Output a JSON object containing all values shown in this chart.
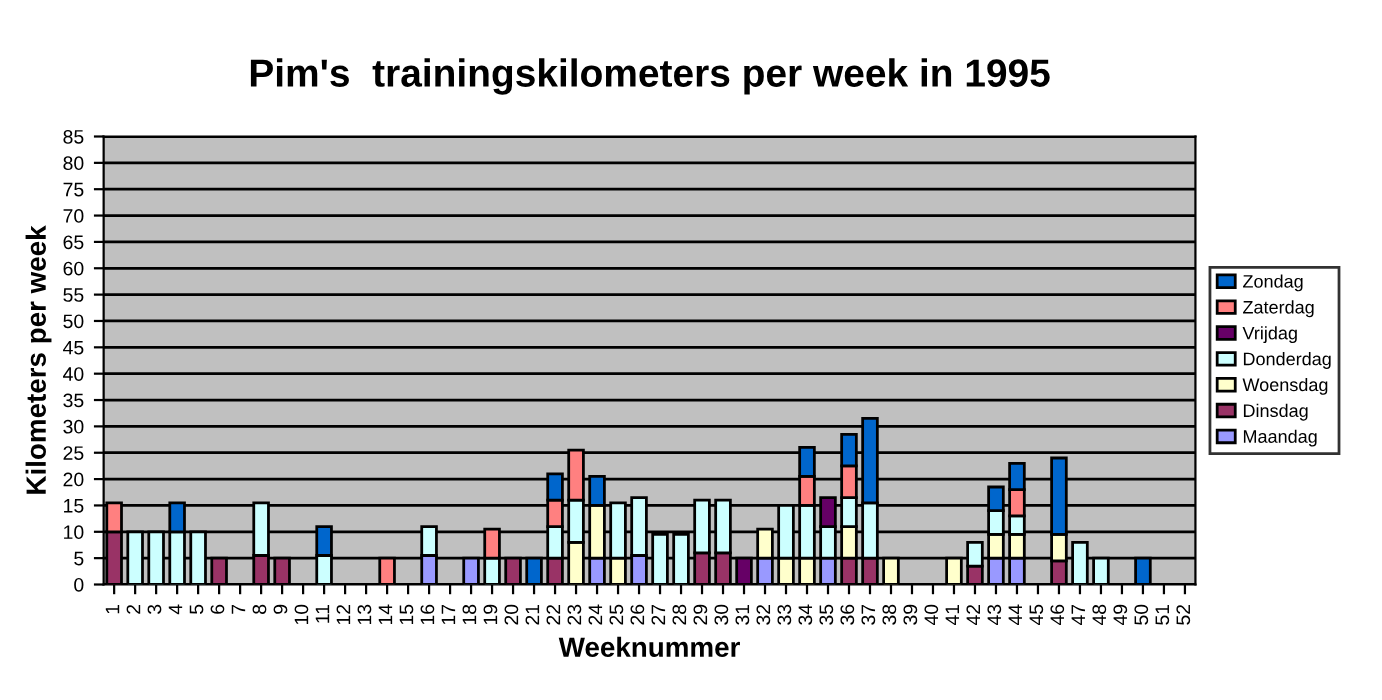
{
  "chart_data": {
    "type": "bar",
    "stacked": true,
    "title": "Pim's  trainingskilometers per week in 1995",
    "xlabel": "Weeknummer",
    "ylabel": "Kilometers per week",
    "categories": [
      "1",
      "2",
      "3",
      "4",
      "5",
      "6",
      "7",
      "8",
      "9",
      "10",
      "11",
      "12",
      "13",
      "14",
      "15",
      "16",
      "17",
      "18",
      "19",
      "20",
      "21",
      "22",
      "23",
      "24",
      "25",
      "26",
      "27",
      "28",
      "29",
      "30",
      "31",
      "32",
      "33",
      "34",
      "35",
      "36",
      "37",
      "38",
      "39",
      "40",
      "41",
      "42",
      "43",
      "44",
      "45",
      "46",
      "47",
      "48",
      "49",
      "50",
      "51",
      "52"
    ],
    "series": [
      {
        "name": "Maandag",
        "color": "#9999ff",
        "values": [
          null,
          null,
          null,
          null,
          null,
          null,
          null,
          null,
          null,
          null,
          null,
          null,
          null,
          null,
          null,
          5.5,
          null,
          5,
          null,
          null,
          null,
          null,
          null,
          5,
          null,
          5.5,
          null,
          null,
          null,
          null,
          null,
          5,
          null,
          null,
          5,
          null,
          null,
          null,
          null,
          null,
          null,
          null,
          5,
          5,
          null,
          null,
          null,
          null,
          null,
          null,
          null,
          null
        ]
      },
      {
        "name": "Dinsdag",
        "color": "#993366",
        "values": [
          10,
          null,
          null,
          null,
          null,
          5,
          null,
          5.5,
          5,
          null,
          null,
          null,
          null,
          null,
          null,
          null,
          null,
          null,
          null,
          5,
          null,
          5,
          null,
          null,
          null,
          null,
          null,
          null,
          6,
          6,
          null,
          null,
          null,
          null,
          null,
          5,
          5,
          null,
          null,
          null,
          null,
          3.5,
          null,
          null,
          null,
          4.5,
          null,
          null,
          null,
          null,
          null,
          null
        ]
      },
      {
        "name": "Woensdag",
        "color": "#ffffcc",
        "values": [
          null,
          null,
          null,
          null,
          null,
          null,
          null,
          null,
          null,
          null,
          null,
          null,
          null,
          null,
          null,
          null,
          null,
          null,
          null,
          null,
          null,
          null,
          8,
          10,
          5,
          null,
          null,
          null,
          null,
          null,
          null,
          5.5,
          5,
          5,
          null,
          6,
          null,
          5,
          null,
          null,
          5,
          null,
          4.5,
          4.5,
          null,
          5,
          null,
          null,
          null,
          null,
          null,
          null
        ]
      },
      {
        "name": "Donderdag",
        "color": "#ccffff",
        "values": [
          null,
          10,
          10,
          10,
          10,
          null,
          null,
          10,
          null,
          null,
          5.5,
          null,
          null,
          null,
          null,
          5.5,
          null,
          null,
          5,
          null,
          null,
          6,
          8,
          null,
          10.5,
          11,
          9.5,
          9.5,
          10,
          10,
          null,
          null,
          10,
          10,
          6,
          5.5,
          10.5,
          null,
          null,
          null,
          null,
          4.5,
          4.5,
          3.5,
          null,
          null,
          8,
          5,
          null,
          null,
          null,
          null
        ]
      },
      {
        "name": "Vrijdag",
        "color": "#660066",
        "values": [
          null,
          null,
          null,
          null,
          null,
          null,
          null,
          null,
          null,
          null,
          null,
          null,
          null,
          null,
          null,
          null,
          null,
          null,
          null,
          null,
          null,
          null,
          null,
          null,
          null,
          null,
          null,
          null,
          null,
          null,
          5,
          null,
          null,
          null,
          5.5,
          null,
          null,
          null,
          null,
          null,
          null,
          null,
          null,
          null,
          null,
          null,
          null,
          null,
          null,
          null,
          null,
          null
        ]
      },
      {
        "name": "Zaterdag",
        "color": "#ff8080",
        "values": [
          5.5,
          null,
          null,
          null,
          null,
          null,
          null,
          null,
          null,
          null,
          null,
          null,
          null,
          5,
          null,
          null,
          null,
          null,
          5.5,
          null,
          null,
          5,
          9.5,
          null,
          null,
          null,
          null,
          null,
          null,
          null,
          null,
          null,
          null,
          5.5,
          null,
          6,
          null,
          null,
          null,
          null,
          null,
          null,
          null,
          5,
          null,
          null,
          null,
          null,
          null,
          null,
          null,
          null
        ]
      },
      {
        "name": "Zondag",
        "color": "#0066cc",
        "values": [
          null,
          null,
          null,
          5.5,
          null,
          null,
          null,
          null,
          null,
          null,
          5.5,
          null,
          null,
          null,
          null,
          null,
          null,
          null,
          null,
          null,
          5,
          5,
          null,
          5.5,
          null,
          null,
          null,
          null,
          null,
          null,
          null,
          null,
          null,
          5.5,
          null,
          6,
          16,
          null,
          null,
          null,
          null,
          null,
          4.5,
          5,
          null,
          14.5,
          null,
          null,
          null,
          5,
          null,
          null
        ]
      }
    ],
    "ylim": [
      0,
      85
    ],
    "yticks": [
      0,
      5,
      10,
      15,
      20,
      25,
      30,
      35,
      40,
      45,
      50,
      55,
      60,
      65,
      70,
      75,
      80,
      85
    ],
    "grid": "y",
    "legend": "right"
  }
}
